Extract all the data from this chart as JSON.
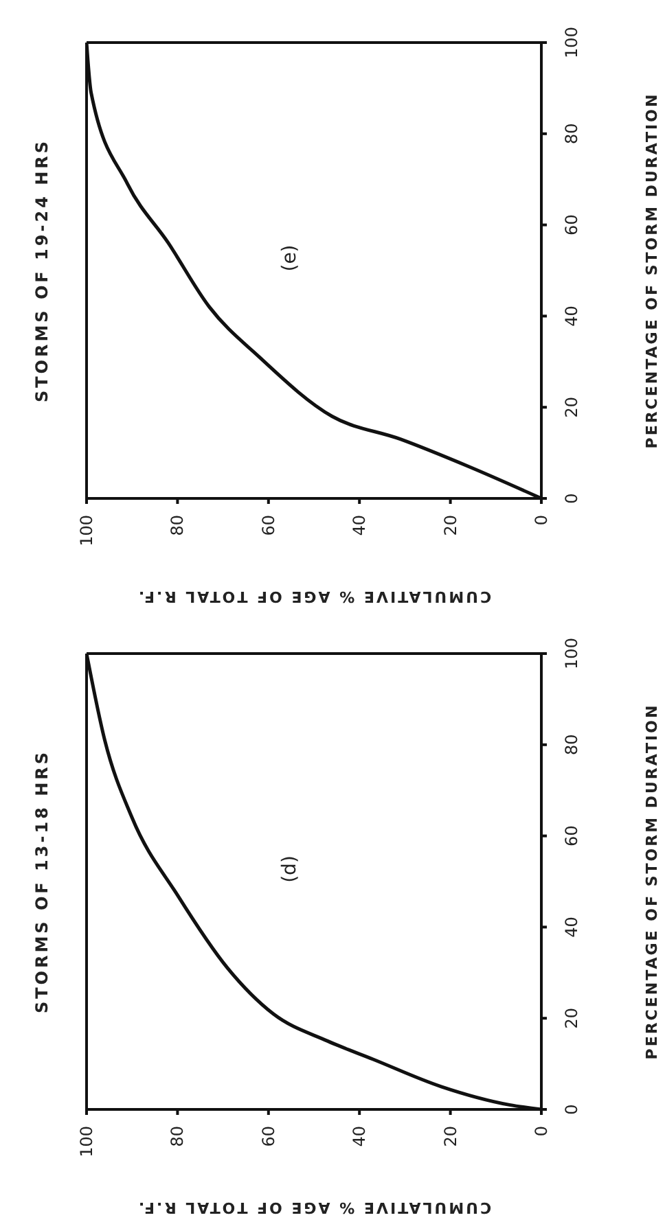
{
  "chart_data": [
    {
      "type": "line",
      "title": "STORMS OF 19-24 HRS",
      "xlabel": "CUMULATIVE % AGE OF TOTAL R.F.",
      "ylabel": "PERCENTAGE OF STORM DURATION",
      "annotations": [
        "(e)"
      ],
      "series": [
        {
          "color": "#111111",
          "x": [
            0,
            16,
            31,
            46,
            62,
            73,
            82,
            91,
            99,
            100
          ],
          "values": [
            0,
            7,
            13,
            18,
            31,
            42,
            56,
            69,
            89,
            100
          ]
        }
      ],
      "xlim": [
        100,
        0
      ],
      "ylim": [
        0,
        100
      ],
      "xticks": [
        0,
        20,
        40,
        60,
        80,
        100
      ],
      "yticks": [
        0,
        20,
        40,
        60,
        80,
        100
      ]
    },
    {
      "type": "line",
      "title": "STORMS OF 13-18 HRS",
      "xlabel": "CUMULATIVE % AGE OF TOTAL R.F.",
      "ylabel": "PERCENTAGE OF STORM DURATION",
      "annotations": [
        "(d)"
      ],
      "series": [
        {
          "color": "#111111",
          "x": [
            0,
            7,
            22,
            37,
            47,
            59,
            69,
            80,
            90,
            96,
            100
          ],
          "values": [
            0,
            1,
            5,
            11,
            15,
            21,
            31,
            47,
            64,
            81,
            100
          ]
        }
      ],
      "xlim": [
        100,
        0
      ],
      "ylim": [
        0,
        100
      ],
      "xticks": [
        0,
        20,
        40,
        60,
        80,
        100
      ],
      "yticks": [
        0,
        20,
        40,
        60,
        80,
        100
      ]
    }
  ]
}
